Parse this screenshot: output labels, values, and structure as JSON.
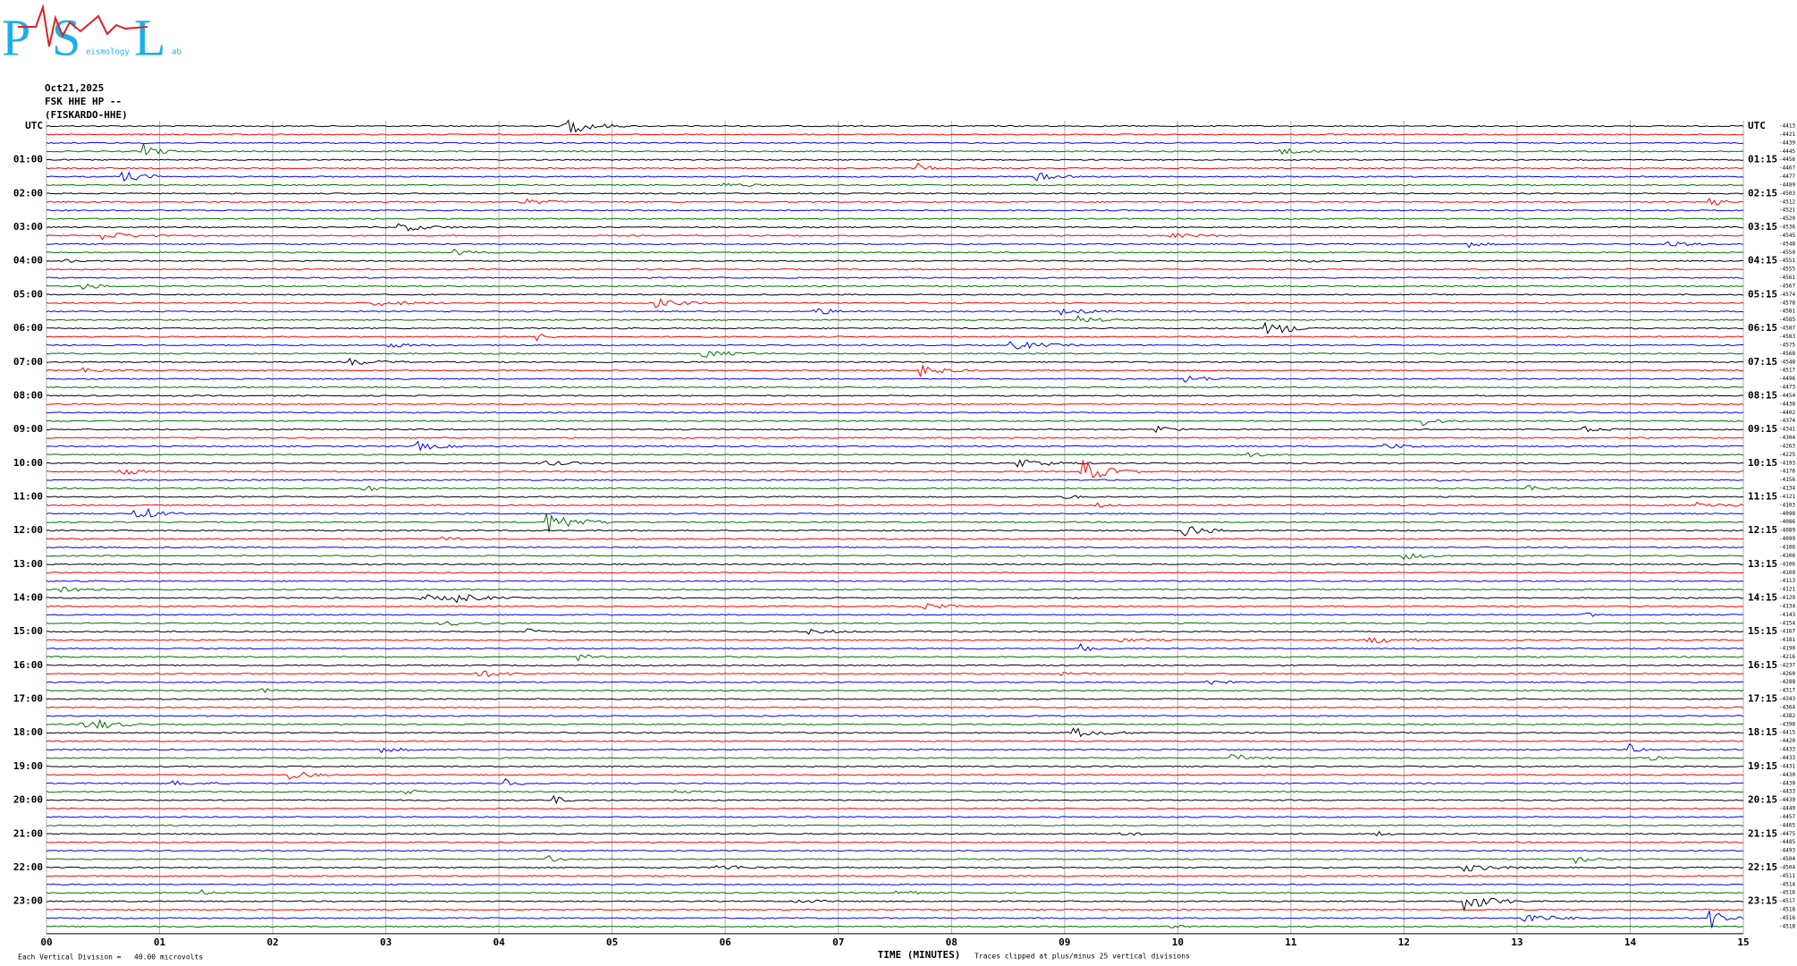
{
  "logo": {
    "letters": [
      "P",
      "S",
      "L"
    ],
    "fragments": [
      "eismology",
      "ab"
    ]
  },
  "header": {
    "date": "Oct21,2025",
    "station": "FSK HHE HP --",
    "site": "(FISKARDO-HHE)"
  },
  "left_labels": [
    "UTC",
    "01:00",
    "02:00",
    "03:00",
    "04:00",
    "05:00",
    "06:00",
    "07:00",
    "08:00",
    "09:00",
    "10:00",
    "11:00",
    "12:00",
    "13:00",
    "14:00",
    "15:00",
    "16:00",
    "17:00",
    "18:00",
    "19:00",
    "20:00",
    "21:00",
    "22:00",
    "23:00"
  ],
  "right_labels": [
    "UTC",
    "01:15",
    "02:15",
    "03:15",
    "04:15",
    "05:15",
    "06:15",
    "07:15",
    "08:15",
    "09:15",
    "10:15",
    "11:15",
    "12:15",
    "13:15",
    "14:15",
    "15:15",
    "16:15",
    "17:15",
    "18:15",
    "19:15",
    "20:15",
    "21:15",
    "22:15",
    "23:15"
  ],
  "trace_offsets": [
    -4413,
    -4421,
    -4439,
    -4445,
    -4456,
    -4467,
    -4477,
    -4489,
    -4503,
    -4512,
    -4521,
    -4520,
    -4536,
    -4545,
    -4548,
    -4550,
    -4551,
    -4555,
    -4561,
    -4567,
    -4574,
    -4578,
    -4581,
    -4585,
    -4587,
    -4583,
    -4575,
    -4568,
    -4548,
    -4517,
    -4496,
    -4473,
    -4454,
    -4438,
    -4402,
    -4374,
    -4341,
    -4304,
    -4263,
    -4225,
    -4193,
    -4176,
    -4156,
    -4134,
    -4121,
    -4103,
    -4098,
    -4086,
    -4089,
    -4099,
    -4106,
    -4106,
    -4106,
    -4109,
    -4113,
    -4121,
    -4129,
    -4134,
    -4143,
    -4154,
    -4167,
    -4181,
    -4190,
    -4216,
    -4237,
    -4260,
    -4288,
    -4317,
    -4343,
    -4364,
    -4382,
    -4398,
    -4415,
    -4420,
    -4433,
    -4433,
    -4431,
    -4430,
    -4430,
    -4433,
    -4439,
    -4449,
    -4457,
    -4465,
    -4475,
    -4485,
    -4493,
    -4504,
    -4504,
    -4511,
    -4514,
    -4516,
    -4517,
    -4518,
    -4516,
    -4518
  ],
  "trace_colors": [
    "#000000",
    "#ff0000",
    "#0000ff",
    "#007000"
  ],
  "x_ticks": [
    "00",
    "01",
    "02",
    "03",
    "04",
    "05",
    "06",
    "07",
    "08",
    "09",
    "10",
    "11",
    "12",
    "13",
    "14",
    "15"
  ],
  "footer": {
    "division": "Each Vertical Division =   40.00 microvolts",
    "axis_title": "TIME (MINUTES)",
    "clip_note": "Traces clipped at plus/minus 25 vertical divisions"
  }
}
